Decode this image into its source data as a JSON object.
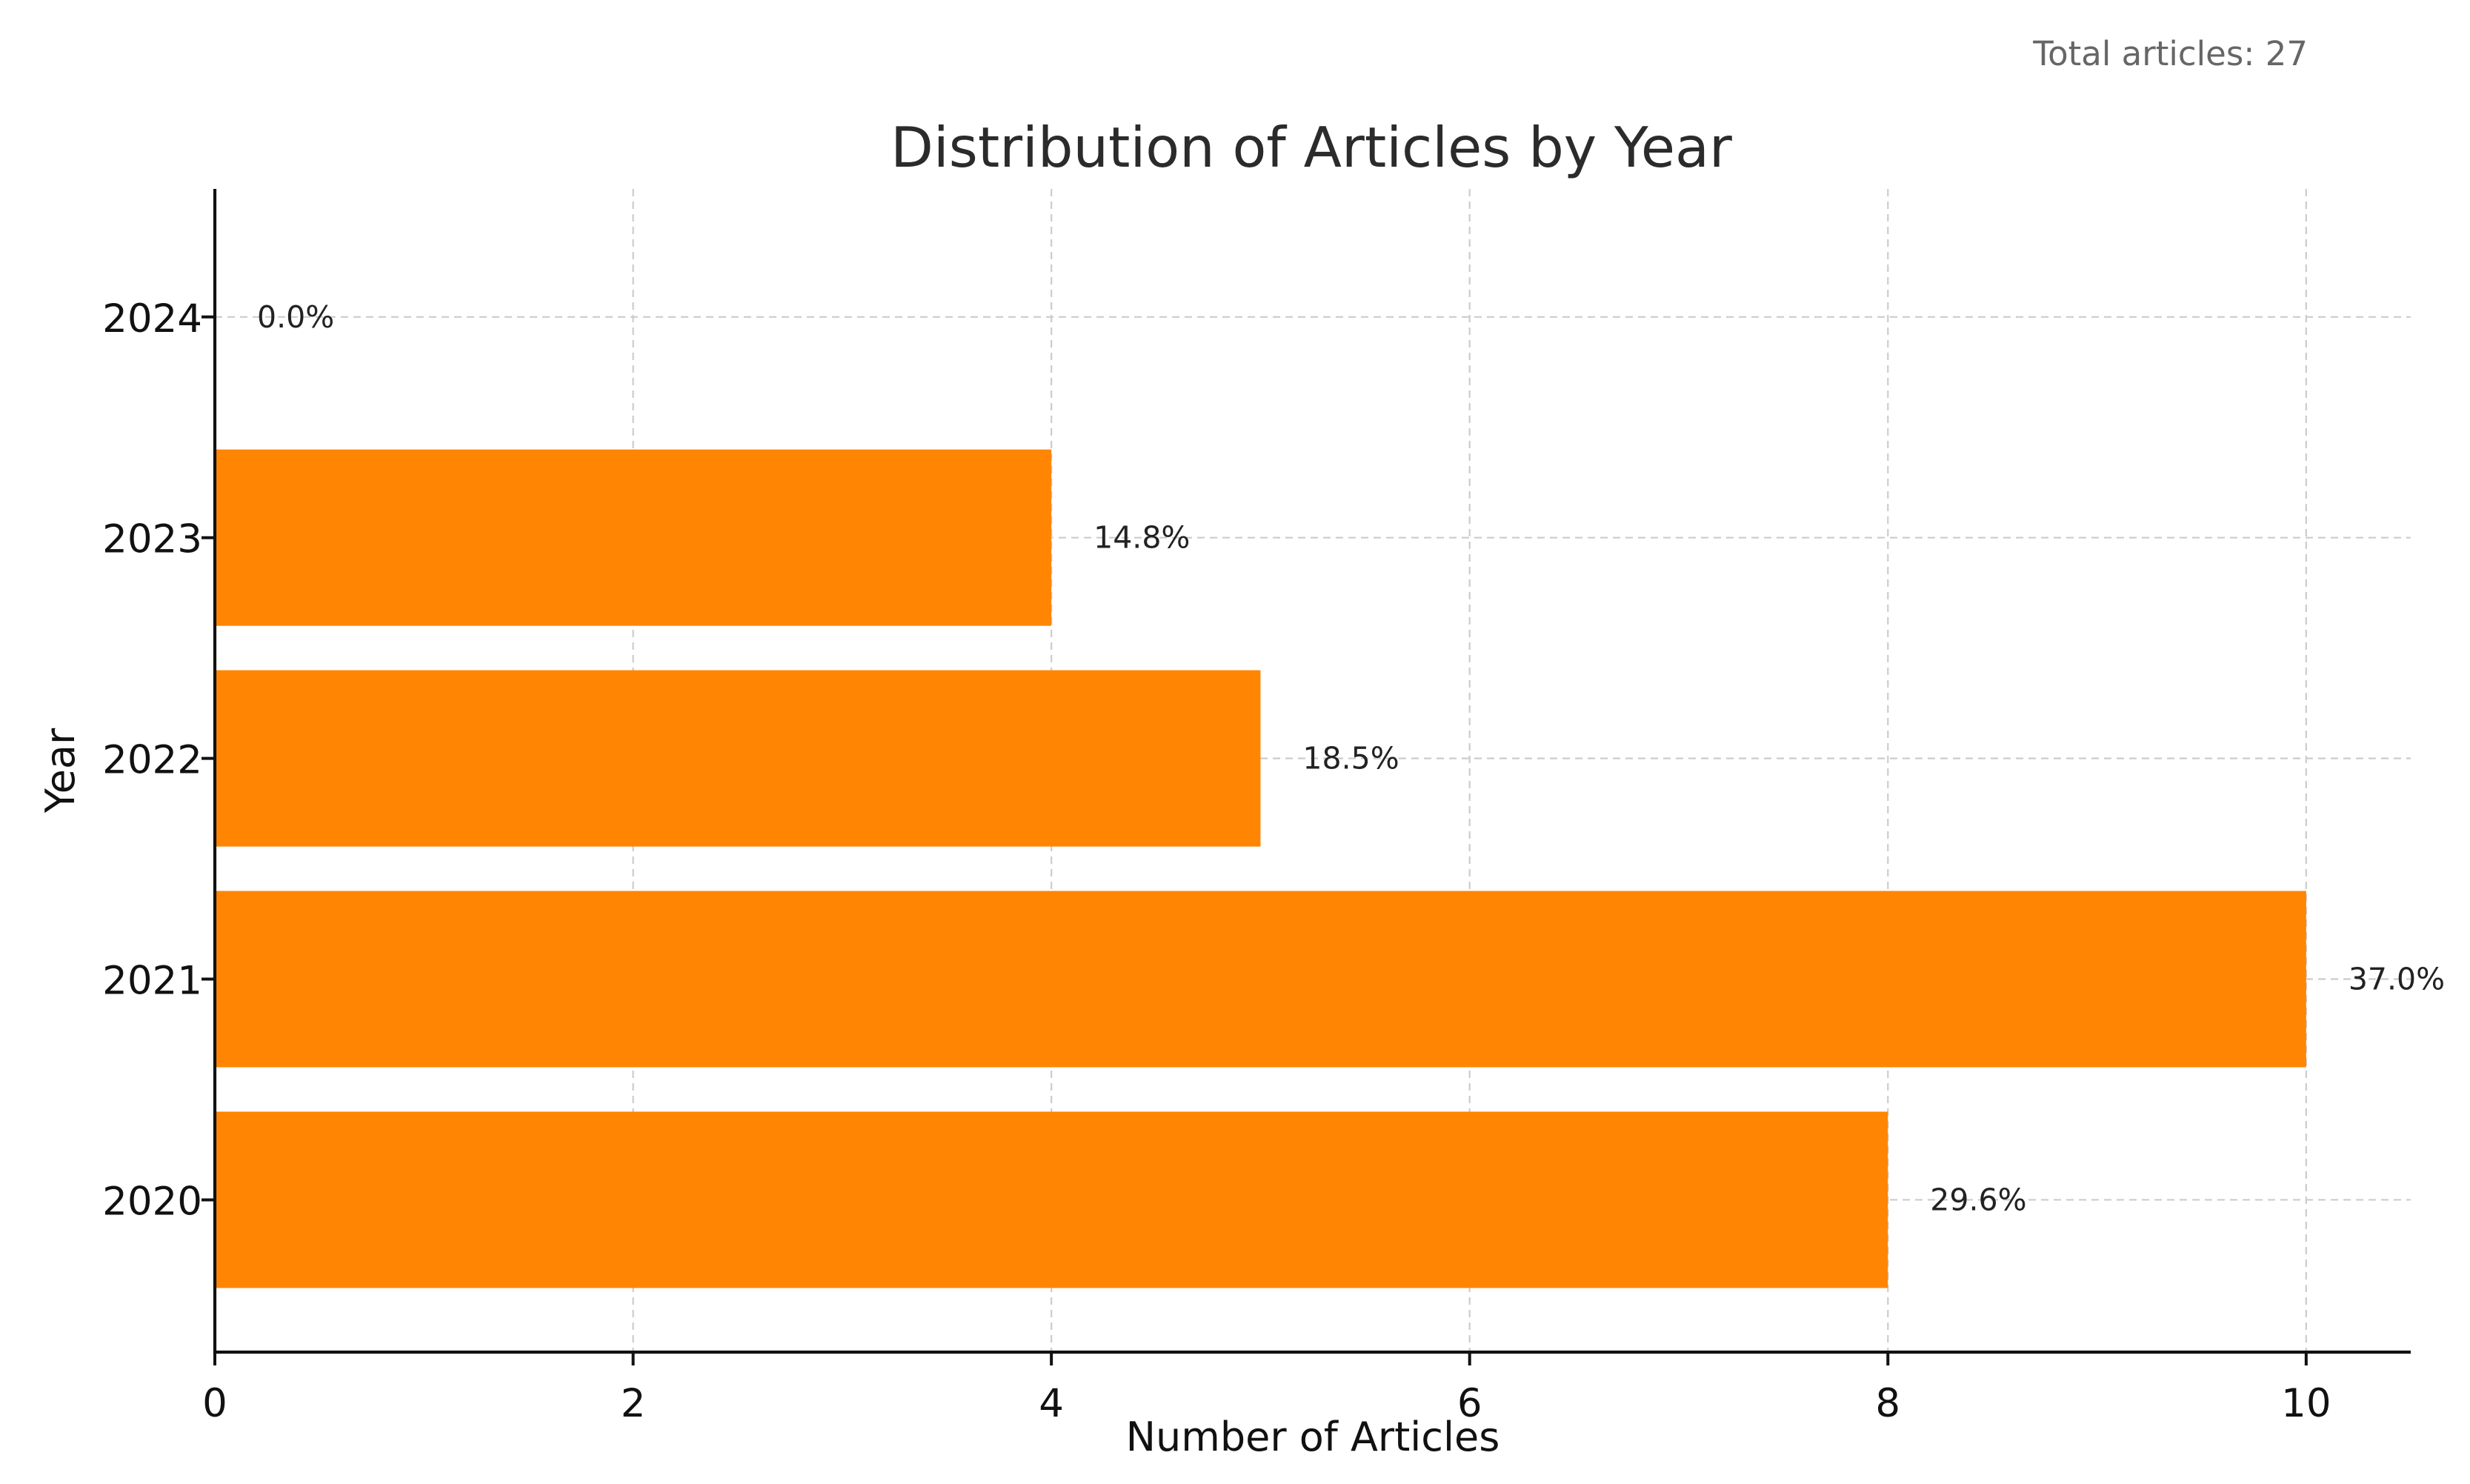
{
  "header": {
    "total_note": "Total articles: 27"
  },
  "chart_data": {
    "type": "bar",
    "orientation": "horizontal",
    "title": "Distribution of Articles by Year",
    "xlabel": "Number of Articles",
    "ylabel": "Year",
    "categories": [
      "2020",
      "2021",
      "2022",
      "2023",
      "2024"
    ],
    "values": [
      8,
      10,
      5,
      4,
      0
    ],
    "data_labels": [
      "29.6%",
      "37.0%",
      "18.5%",
      "14.8%",
      "0.0%"
    ],
    "xlim": [
      0,
      10.5
    ],
    "xticks": [
      0,
      2,
      4,
      6,
      8,
      10
    ],
    "grid": true,
    "bar_color": "#ff8503"
  }
}
